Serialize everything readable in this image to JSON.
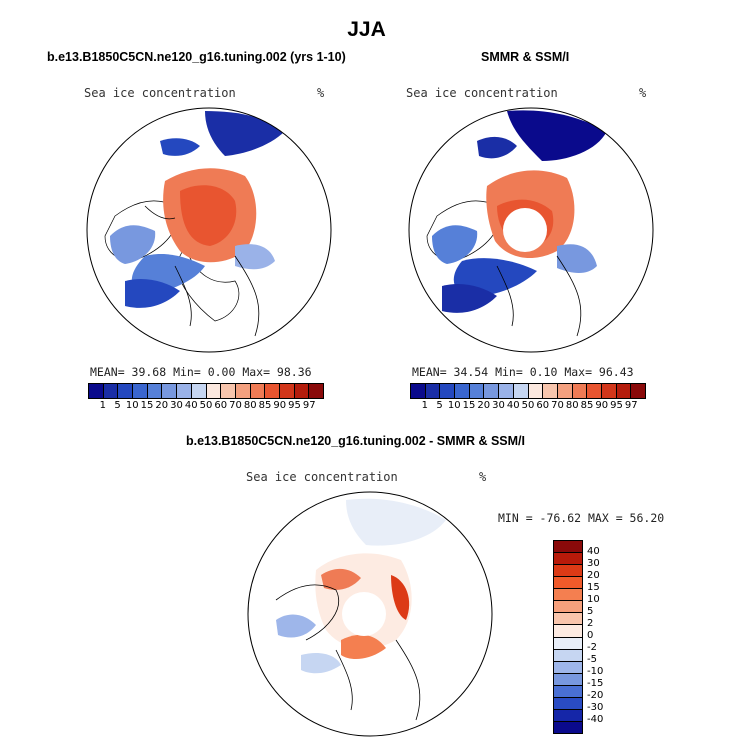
{
  "page": {
    "title": "JJA"
  },
  "panels": {
    "left": {
      "title": "b.e13.B1850C5CN.ne120_g16.tuning.002 (yrs 1-10)",
      "variable": "Sea ice concentration",
      "units": "%",
      "stats": {
        "mean": "39.68",
        "min": "0.00",
        "max": "98.36"
      },
      "stats_text": "MEAN=  39.68  Min=   0.00  Max=  98.36"
    },
    "right": {
      "title": "SMMR & SSM/I",
      "variable": "Sea ice concentration",
      "units": "%",
      "stats": {
        "mean": "34.54",
        "min": "0.10",
        "max": "96.43"
      },
      "stats_text": "MEAN=  34.54  Min=   0.10  Max=  96.43"
    },
    "diff": {
      "title": "b.e13.B1850C5CN.ne120_g16.tuning.002 - SMMR & SSM/I",
      "variable": "Sea ice concentration",
      "units": "%",
      "stats": {
        "min": "-76.62",
        "max": "56.20"
      },
      "stats_text": "MIN = -76.62 MAX =  56.20"
    }
  },
  "colorbar_conc": {
    "tick_labels": [
      "1",
      "5",
      "10",
      "15",
      "20",
      "30",
      "40",
      "50",
      "60",
      "70",
      "80",
      "85",
      "90",
      "95",
      "97"
    ],
    "colors": [
      "#0a0a8c",
      "#1a2ea6",
      "#2448bf",
      "#3a66cf",
      "#5680d8",
      "#7898df",
      "#9ab2e8",
      "#c6d6f2",
      "#fbe8df",
      "#f7c5ad",
      "#f3a07f",
      "#ef7b55",
      "#e85530",
      "#d2361a",
      "#b41c0c",
      "#8a0a0a"
    ]
  },
  "colorbar_diff": {
    "tick_labels": [
      "40",
      "30",
      "20",
      "15",
      "10",
      "5",
      "2",
      "0",
      "-2",
      "-5",
      "-10",
      "-15",
      "-20",
      "-30",
      "-40"
    ],
    "colors": [
      "#8a0a0a",
      "#b81a0a",
      "#dc3a16",
      "#f05a2a",
      "#f47f50",
      "#f6a07c",
      "#f9c5ac",
      "#fdebe2",
      "#e8eef8",
      "#c6d6f2",
      "#9eb6ea",
      "#7898df",
      "#4a70d4",
      "#2a4cc4",
      "#1526a8",
      "#0a0a8c"
    ]
  }
}
